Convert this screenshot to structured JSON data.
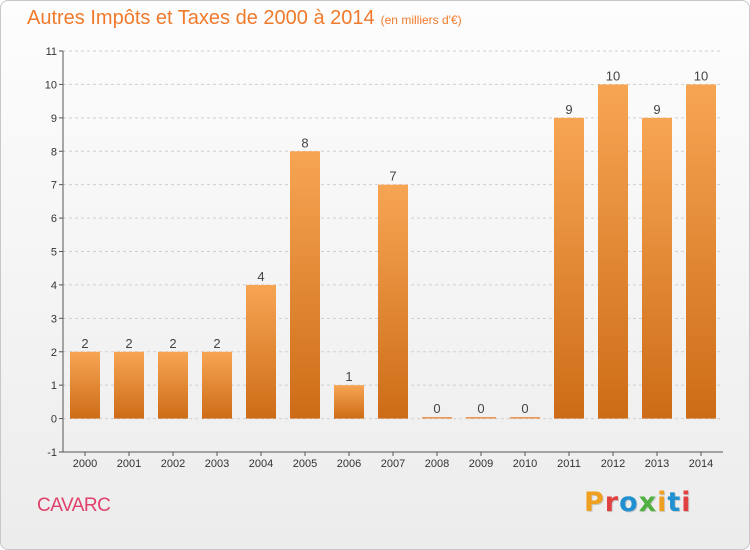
{
  "header": {
    "title": "Autres Impôts et Taxes de 2000 à 2014",
    "subtitle": "(en milliers d'€)"
  },
  "footer": {
    "location": "CAVARC",
    "brand": "Proxiti"
  },
  "colors": {
    "title": "#f07a2b",
    "location": "#e0406a",
    "bar_light": "#f7a553",
    "bar_dark": "#cd6c17",
    "axis": "#555555",
    "grid": "#cfcfcf"
  },
  "chart_data": {
    "type": "bar",
    "title": "Autres Impôts et Taxes de 2000 à 2014",
    "subtitle": "(en milliers d'€)",
    "xlabel": "",
    "ylabel": "",
    "categories": [
      "2000",
      "2001",
      "2002",
      "2003",
      "2004",
      "2005",
      "2006",
      "2007",
      "2008",
      "2009",
      "2010",
      "2011",
      "2012",
      "2013",
      "2014"
    ],
    "values": [
      2,
      2,
      2,
      2,
      4,
      8,
      1,
      7,
      0,
      0,
      0,
      9,
      10,
      9,
      10
    ],
    "data_labels": [
      "2",
      "2",
      "2",
      "2",
      "4",
      "8",
      "1",
      "7",
      "0",
      "0",
      "0",
      "9",
      "10",
      "9",
      "10"
    ],
    "ylim": [
      -1,
      11
    ],
    "yticks": [
      -1,
      0,
      1,
      2,
      3,
      4,
      5,
      6,
      7,
      8,
      9,
      10,
      11
    ],
    "grid": "horizontal dashed"
  }
}
